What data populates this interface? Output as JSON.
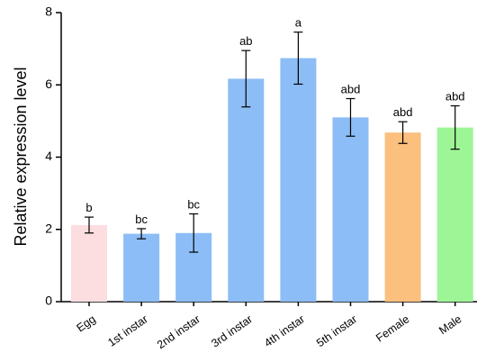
{
  "chart_data": {
    "type": "bar",
    "title": "",
    "xlabel": "",
    "ylabel": "Relative expression level",
    "ylim": [
      0,
      8
    ],
    "yticks": [
      0,
      2,
      4,
      6,
      8
    ],
    "grid": false,
    "categories": [
      "Egg",
      "1st instar",
      "2nd instar",
      "3rd instar",
      "4th instar",
      "5th instar",
      "Female",
      "Male"
    ],
    "values": [
      2.12,
      1.88,
      1.9,
      6.17,
      6.74,
      5.1,
      4.68,
      4.82
    ],
    "errors": [
      0.22,
      0.14,
      0.53,
      0.78,
      0.72,
      0.52,
      0.3,
      0.6
    ],
    "significance": [
      "b",
      "bc",
      "bc",
      "ab",
      "a",
      "abd",
      "abd",
      "abd"
    ],
    "colors": [
      "#fcdde0",
      "#8cbdf6",
      "#8cbdf6",
      "#8cbdf6",
      "#8cbdf6",
      "#8cbdf6",
      "#fbbf7e",
      "#9ef596"
    ]
  }
}
